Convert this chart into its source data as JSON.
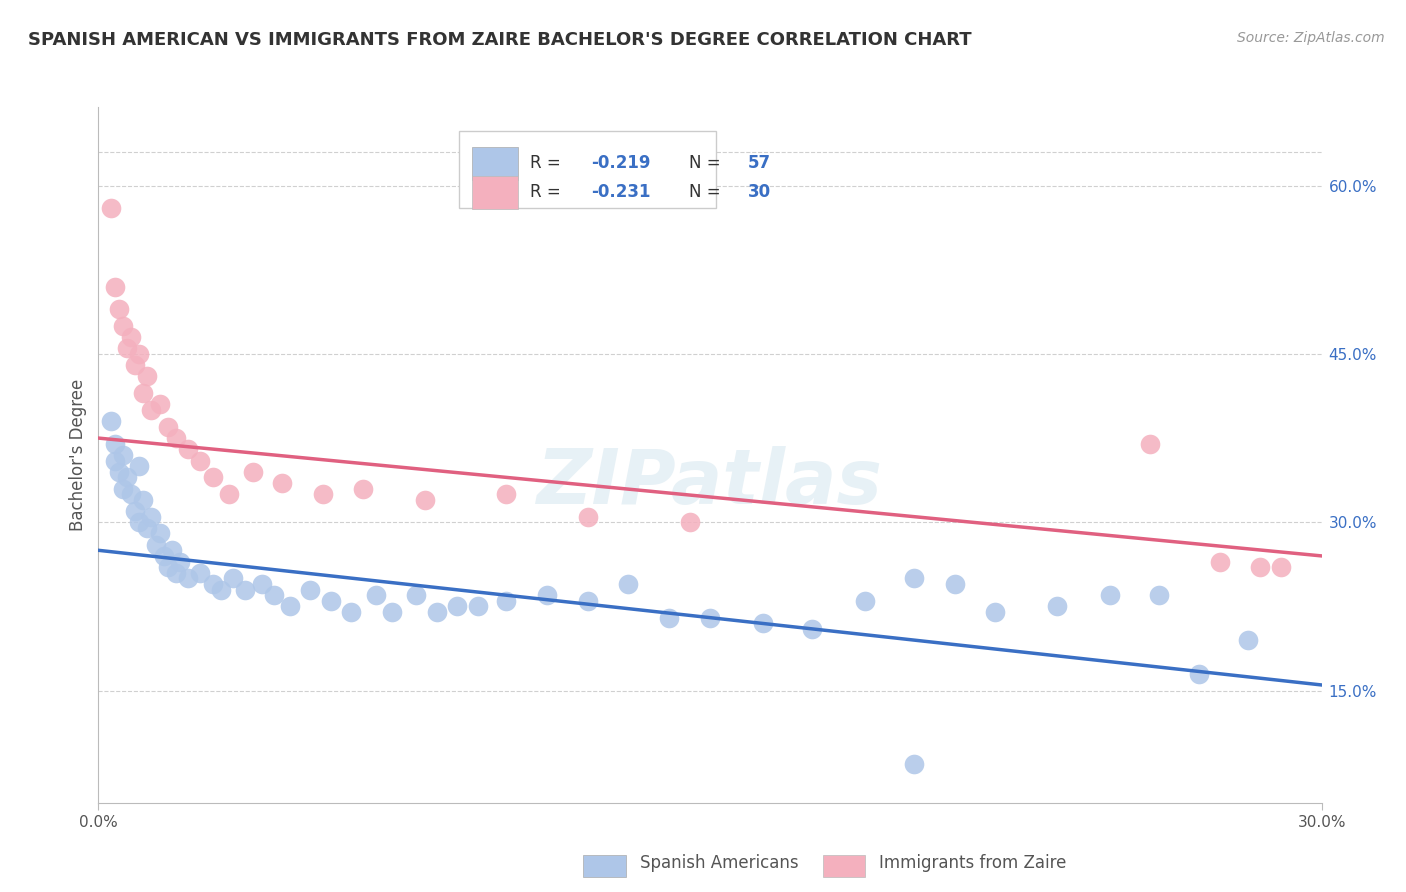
{
  "title": "SPANISH AMERICAN VS IMMIGRANTS FROM ZAIRE BACHELOR'S DEGREE CORRELATION CHART",
  "source_text": "Source: ZipAtlas.com",
  "ylabel": "Bachelor's Degree",
  "right_yticks": [
    "60.0%",
    "45.0%",
    "30.0%",
    "15.0%"
  ],
  "right_ytick_vals": [
    0.6,
    0.45,
    0.3,
    0.15
  ],
  "xmin": 0.0,
  "xmax": 0.3,
  "ymin": 0.05,
  "ymax": 0.67,
  "r_blue": -0.219,
  "n_blue": 57,
  "r_pink": -0.231,
  "n_pink": 30,
  "legend_label_blue": "Spanish Americans",
  "legend_label_pink": "Immigrants from Zaire",
  "watermark": "ZIPatlas",
  "blue_scatter": [
    [
      0.003,
      0.39
    ],
    [
      0.004,
      0.37
    ],
    [
      0.004,
      0.355
    ],
    [
      0.005,
      0.345
    ],
    [
      0.006,
      0.36
    ],
    [
      0.006,
      0.33
    ],
    [
      0.007,
      0.34
    ],
    [
      0.008,
      0.325
    ],
    [
      0.009,
      0.31
    ],
    [
      0.01,
      0.35
    ],
    [
      0.01,
      0.3
    ],
    [
      0.011,
      0.32
    ],
    [
      0.012,
      0.295
    ],
    [
      0.013,
      0.305
    ],
    [
      0.014,
      0.28
    ],
    [
      0.015,
      0.29
    ],
    [
      0.016,
      0.27
    ],
    [
      0.017,
      0.26
    ],
    [
      0.018,
      0.275
    ],
    [
      0.019,
      0.255
    ],
    [
      0.02,
      0.265
    ],
    [
      0.022,
      0.25
    ],
    [
      0.025,
      0.255
    ],
    [
      0.028,
      0.245
    ],
    [
      0.03,
      0.24
    ],
    [
      0.033,
      0.25
    ],
    [
      0.036,
      0.24
    ],
    [
      0.04,
      0.245
    ],
    [
      0.043,
      0.235
    ],
    [
      0.047,
      0.225
    ],
    [
      0.052,
      0.24
    ],
    [
      0.057,
      0.23
    ],
    [
      0.062,
      0.22
    ],
    [
      0.068,
      0.235
    ],
    [
      0.072,
      0.22
    ],
    [
      0.078,
      0.235
    ],
    [
      0.083,
      0.22
    ],
    [
      0.088,
      0.225
    ],
    [
      0.093,
      0.225
    ],
    [
      0.1,
      0.23
    ],
    [
      0.11,
      0.235
    ],
    [
      0.12,
      0.23
    ],
    [
      0.13,
      0.245
    ],
    [
      0.14,
      0.215
    ],
    [
      0.15,
      0.215
    ],
    [
      0.163,
      0.21
    ],
    [
      0.175,
      0.205
    ],
    [
      0.188,
      0.23
    ],
    [
      0.2,
      0.25
    ],
    [
      0.21,
      0.245
    ],
    [
      0.22,
      0.22
    ],
    [
      0.235,
      0.225
    ],
    [
      0.248,
      0.235
    ],
    [
      0.26,
      0.235
    ],
    [
      0.27,
      0.165
    ],
    [
      0.282,
      0.195
    ],
    [
      0.2,
      0.085
    ]
  ],
  "pink_scatter": [
    [
      0.003,
      0.58
    ],
    [
      0.004,
      0.51
    ],
    [
      0.005,
      0.49
    ],
    [
      0.006,
      0.475
    ],
    [
      0.007,
      0.455
    ],
    [
      0.008,
      0.465
    ],
    [
      0.009,
      0.44
    ],
    [
      0.01,
      0.45
    ],
    [
      0.011,
      0.415
    ],
    [
      0.012,
      0.43
    ],
    [
      0.013,
      0.4
    ],
    [
      0.015,
      0.405
    ],
    [
      0.017,
      0.385
    ],
    [
      0.019,
      0.375
    ],
    [
      0.022,
      0.365
    ],
    [
      0.025,
      0.355
    ],
    [
      0.028,
      0.34
    ],
    [
      0.032,
      0.325
    ],
    [
      0.038,
      0.345
    ],
    [
      0.045,
      0.335
    ],
    [
      0.055,
      0.325
    ],
    [
      0.065,
      0.33
    ],
    [
      0.08,
      0.32
    ],
    [
      0.1,
      0.325
    ],
    [
      0.12,
      0.305
    ],
    [
      0.145,
      0.3
    ],
    [
      0.258,
      0.37
    ],
    [
      0.275,
      0.265
    ],
    [
      0.285,
      0.26
    ],
    [
      0.29,
      0.26
    ]
  ],
  "blue_line_x": [
    0.0,
    0.3
  ],
  "blue_line_y": [
    0.275,
    0.155
  ],
  "pink_line_x": [
    0.0,
    0.3
  ],
  "pink_line_y": [
    0.375,
    0.27
  ],
  "dot_color_blue": "#aec6e8",
  "dot_color_pink": "#f4b0be",
  "line_color_blue": "#3a6fc4",
  "line_color_pink": "#e06080",
  "grid_color": "#d0d0d0",
  "background_color": "#ffffff"
}
